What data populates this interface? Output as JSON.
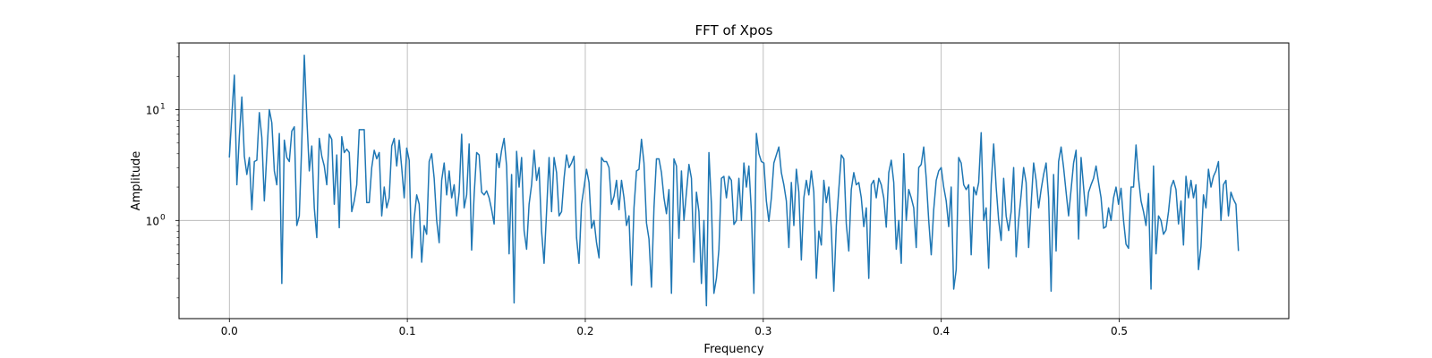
{
  "chart_data": {
    "type": "line",
    "title": "FFT of Xpos",
    "xlabel": "Frequency",
    "ylabel": "Amplitude",
    "xscale": "linear",
    "yscale": "log",
    "xlim": [
      -0.0283,
      0.5953
    ],
    "ylim": [
      0.13,
      40
    ],
    "grid": true,
    "x_ticks": [
      0.0,
      0.1,
      0.2,
      0.3,
      0.4,
      0.5
    ],
    "x_tick_labels": [
      "0.0",
      "0.1",
      "0.2",
      "0.3",
      "0.4",
      "0.5"
    ],
    "y_ticks": [
      1,
      10
    ],
    "y_tick_labels_base": [
      "10",
      "10"
    ],
    "y_tick_labels_exp": [
      "0",
      "1"
    ],
    "series_color": "#1f77b4",
    "series": [
      {
        "x_start": 0.0,
        "x_end": 0.567,
        "values": [
          3.7,
          9.0,
          20.5,
          2.1,
          5.8,
          13.0,
          3.8,
          2.6,
          3.7,
          1.25,
          3.4,
          3.5,
          9.4,
          5.6,
          1.5,
          4.0,
          10.0,
          7.6,
          2.8,
          2.1,
          6.1,
          0.27,
          5.3,
          3.7,
          3.4,
          6.4,
          7.0,
          0.9,
          1.1,
          5.0,
          31.0,
          8.5,
          2.8,
          4.7,
          1.3,
          0.7,
          5.5,
          3.8,
          3.1,
          2.1,
          6.0,
          5.4,
          1.4,
          3.9,
          0.86,
          5.7,
          4.1,
          4.4,
          4.1,
          1.2,
          1.5,
          2.1,
          6.6,
          6.6,
          6.6,
          1.45,
          1.45,
          3.0,
          4.3,
          3.6,
          4.1,
          1.1,
          2.0,
          1.3,
          1.6,
          4.7,
          5.5,
          3.1,
          5.3,
          3.0,
          1.6,
          4.5,
          3.5,
          0.46,
          1.05,
          1.7,
          1.4,
          0.42,
          0.9,
          0.75,
          3.4,
          4.0,
          2.4,
          1.0,
          0.63,
          2.3,
          3.3,
          1.7,
          2.8,
          1.6,
          2.1,
          1.1,
          1.8,
          6.0,
          1.3,
          1.7,
          4.9,
          0.54,
          1.7,
          4.1,
          3.9,
          1.8,
          1.7,
          1.85,
          1.6,
          1.25,
          0.93,
          4.0,
          3.0,
          4.3,
          5.5,
          3.1,
          0.5,
          2.6,
          0.18,
          4.2,
          2.0,
          3.7,
          0.81,
          0.55,
          1.4,
          2.1,
          4.3,
          2.3,
          3.0,
          0.8,
          0.41,
          1.2,
          3.7,
          1.2,
          3.7,
          2.7,
          1.1,
          1.2,
          2.4,
          3.9,
          3.0,
          3.3,
          3.8,
          0.7,
          0.41,
          1.4,
          2.0,
          2.9,
          2.2,
          0.85,
          1.0,
          0.63,
          0.46,
          3.7,
          3.4,
          3.4,
          3.0,
          1.4,
          1.65,
          2.3,
          1.25,
          2.3,
          1.6,
          0.9,
          1.1,
          0.26,
          1.3,
          2.8,
          2.9,
          5.4,
          3.3,
          0.95,
          0.68,
          0.25,
          1.3,
          3.6,
          3.6,
          2.7,
          1.6,
          1.15,
          1.9,
          0.22,
          3.6,
          3.1,
          0.69,
          2.8,
          1.0,
          1.8,
          3.2,
          2.4,
          0.42,
          1.8,
          1.2,
          0.27,
          1.0,
          0.17,
          4.1,
          1.4,
          0.22,
          0.3,
          0.55,
          2.4,
          2.5,
          1.6,
          2.5,
          2.3,
          0.92,
          1.0,
          2.4,
          1.0,
          3.3,
          2.0,
          3.1,
          1.2,
          0.22,
          6.1,
          4.0,
          3.4,
          3.3,
          1.5,
          0.98,
          1.6,
          3.3,
          3.9,
          4.6,
          2.7,
          2.1,
          1.5,
          0.57,
          2.2,
          0.9,
          2.9,
          1.8,
          0.44,
          1.6,
          2.3,
          1.7,
          2.8,
          1.8,
          0.3,
          0.8,
          0.6,
          2.3,
          1.45,
          2.0,
          0.84,
          0.23,
          0.9,
          1.9,
          3.9,
          3.6,
          0.93,
          0.53,
          1.9,
          2.7,
          2.1,
          2.2,
          1.6,
          0.88,
          1.3,
          0.3,
          2.1,
          2.3,
          1.6,
          2.4,
          2.1,
          1.6,
          0.87,
          2.7,
          3.5,
          2.2,
          0.55,
          1.0,
          0.41,
          4.0,
          1.0,
          1.9,
          1.6,
          1.3,
          0.57,
          3.0,
          3.2,
          4.6,
          2.4,
          1.0,
          0.49,
          1.25,
          2.3,
          2.8,
          3.0,
          2.0,
          1.5,
          0.88,
          2.0,
          0.24,
          0.36,
          3.7,
          3.3,
          2.1,
          1.9,
          2.1,
          0.49,
          2.0,
          1.7,
          2.2,
          6.2,
          1.0,
          1.3,
          0.37,
          2.1,
          4.9,
          2.0,
          1.0,
          0.66,
          2.4,
          1.1,
          0.81,
          1.2,
          3.0,
          0.47,
          1.0,
          1.7,
          3.0,
          2.2,
          0.57,
          1.4,
          3.3,
          2.3,
          1.3,
          1.9,
          2.6,
          3.3,
          1.6,
          0.23,
          2.6,
          0.53,
          3.4,
          4.6,
          3.0,
          1.8,
          1.1,
          1.9,
          3.3,
          4.3,
          0.68,
          3.7,
          2.0,
          1.1,
          1.8,
          2.1,
          2.4,
          3.1,
          2.2,
          1.6,
          0.85,
          0.88,
          1.3,
          1.0,
          1.6,
          2.0,
          1.4,
          1.95,
          1.0,
          0.61,
          0.56,
          2.0,
          2.0,
          4.8,
          2.4,
          1.5,
          1.2,
          0.9,
          1.75,
          0.24,
          3.1,
          0.5,
          1.1,
          1.0,
          0.75,
          0.82,
          1.2,
          2.0,
          2.3,
          1.9,
          0.93,
          1.5,
          0.6,
          2.5,
          1.6,
          2.3,
          1.6,
          2.1,
          0.36,
          0.58,
          1.7,
          1.3,
          2.9,
          2.0,
          2.5,
          2.8,
          3.4,
          1.0,
          2.1,
          2.3,
          1.1,
          1.8,
          1.55,
          1.4,
          0.53
        ]
      }
    ]
  }
}
